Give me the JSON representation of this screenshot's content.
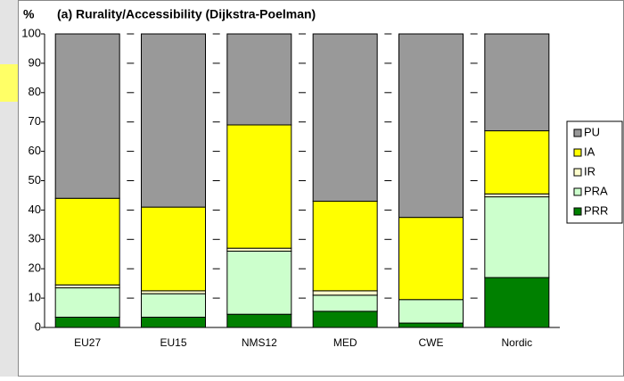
{
  "chart_data": {
    "type": "stacked_bar",
    "y_label": "%",
    "title": "(a) Rurality/Accessibility (Dijkstra-Poelman)",
    "categories": [
      "EU27",
      "EU15",
      "NMS12",
      "MED",
      "CWE",
      "Nordic"
    ],
    "series": [
      {
        "name": "PRR",
        "color": "#008000",
        "values": [
          3.5,
          3.5,
          4.5,
          5.5,
          1.5,
          17
        ]
      },
      {
        "name": "PRA",
        "color": "#ccffcc",
        "values": [
          10,
          8,
          21.5,
          5.5,
          8,
          27.5
        ]
      },
      {
        "name": "IR",
        "color": "#ffffcc",
        "values": [
          1,
          1,
          1,
          1.5,
          0,
          1
        ]
      },
      {
        "name": "IA",
        "color": "#ffff00",
        "values": [
          29.5,
          28.5,
          42,
          30.5,
          28,
          21.5
        ]
      },
      {
        "name": "PU",
        "color": "#999999",
        "values": [
          56,
          59,
          31,
          57,
          62.5,
          33
        ]
      }
    ],
    "ylim": [
      0,
      100
    ],
    "yticks": [
      0,
      10,
      20,
      30,
      40,
      50,
      60,
      70,
      80,
      90,
      100
    ],
    "legend": "right"
  }
}
